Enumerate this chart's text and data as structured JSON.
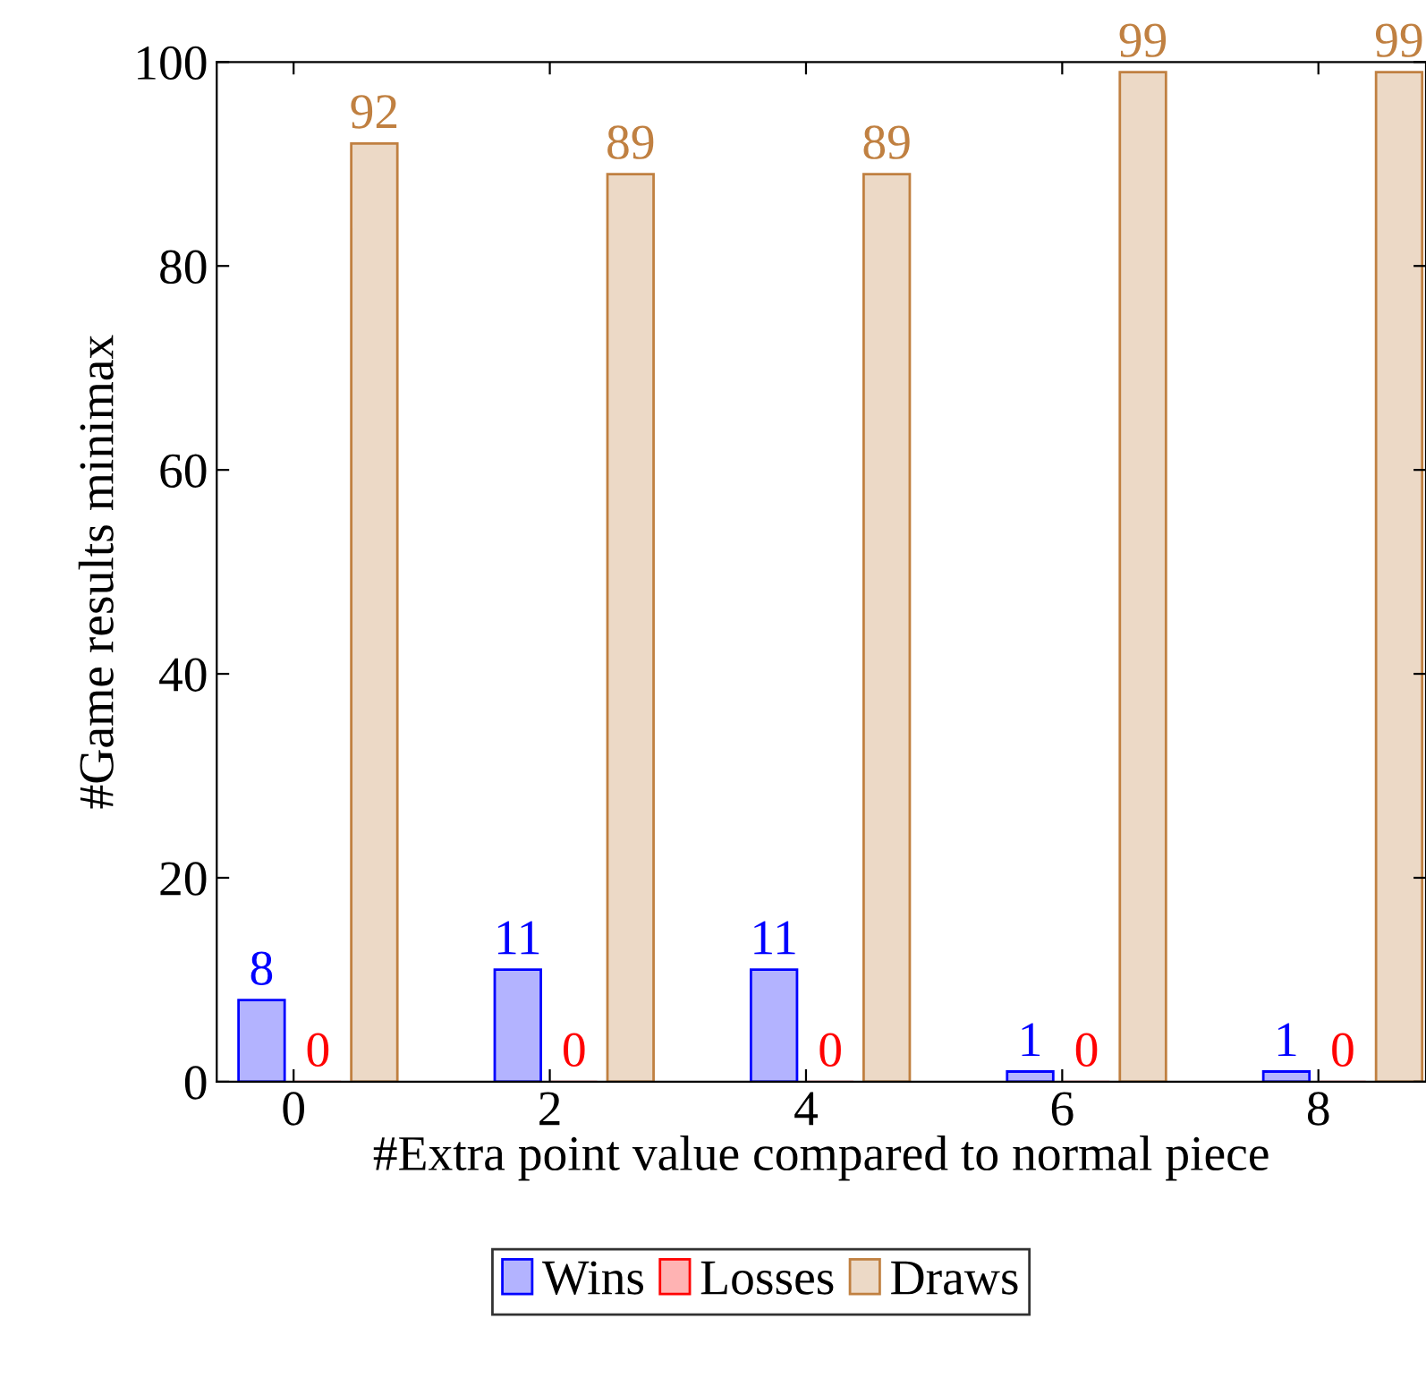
{
  "chart_data": {
    "type": "bar",
    "xlabel": "#Extra point value compared to normal piece",
    "ylabel": "#Game results minimax",
    "x": [
      0,
      2,
      4,
      6,
      8
    ],
    "series": [
      {
        "name": "Wins",
        "color": "#b3b3ff",
        "values": [
          8,
          11,
          11,
          1,
          1
        ]
      },
      {
        "name": "Losses",
        "color": "#ffb3b3",
        "values": [
          0,
          0,
          0,
          0,
          0
        ]
      },
      {
        "name": "Draws",
        "color": "#ecd9c6",
        "values": [
          92,
          89,
          89,
          99,
          99
        ]
      }
    ],
    "xlim": [
      -0.6,
      8.84
    ],
    "xticks": [
      0,
      2,
      4,
      6,
      8
    ],
    "ylim": [
      0,
      100
    ],
    "yticks": [
      0,
      20,
      40,
      60,
      80,
      100
    ],
    "data_labels": true,
    "legend": "bottom",
    "grid": false
  }
}
